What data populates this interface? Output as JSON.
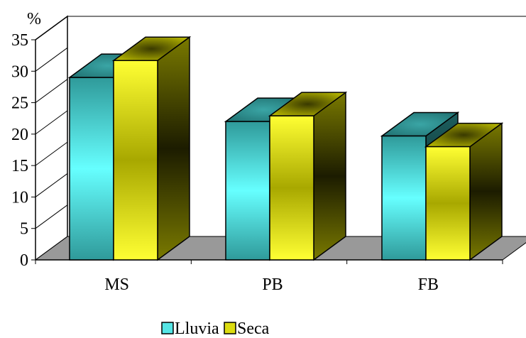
{
  "chart_data": {
    "type": "bar",
    "y_unit_label": "%",
    "categories": [
      "MS",
      "PB",
      "FB"
    ],
    "series": [
      {
        "name": "Lluvia",
        "values": [
          29,
          22,
          19.7
        ],
        "color": "#2f9a9a",
        "highlight": "#66ffff"
      },
      {
        "name": "Seca",
        "values": [
          31.7,
          22.9,
          18
        ],
        "color": "#8a8a00",
        "highlight": "#ffff33"
      }
    ],
    "ylim": [
      0,
      35
    ],
    "yticks": [
      "0",
      "5",
      "10",
      "15",
      "20",
      "25",
      "30",
      "35"
    ],
    "grid": false,
    "three_d": true,
    "floor_color": "#999999",
    "legend_position": "bottom"
  }
}
